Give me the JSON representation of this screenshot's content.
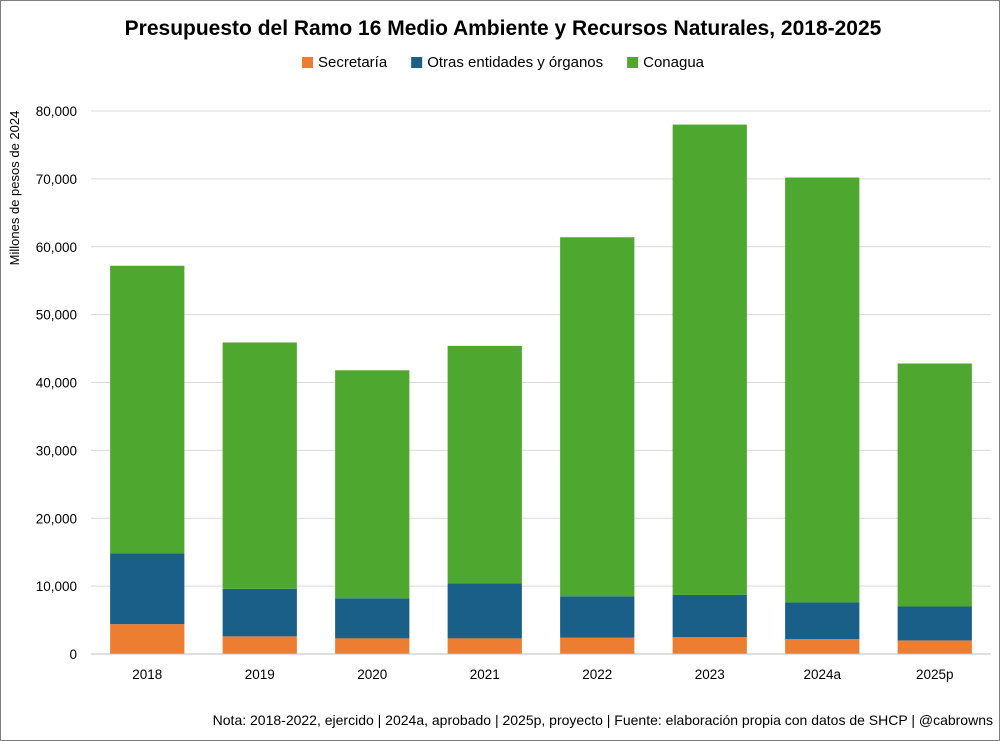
{
  "chart_data": {
    "type": "bar",
    "stacked": true,
    "title": "Presupuesto del Ramo 16 Medio Ambiente y Recursos Naturales, 2018-2025",
    "xlabel": "",
    "ylabel": "Millones de pesos de 2024",
    "categories": [
      "2018",
      "2019",
      "2020",
      "2021",
      "2022",
      "2023",
      "2024a",
      "2025p"
    ],
    "series": [
      {
        "name": "Secretaría",
        "color": "#ed7d31",
        "values": [
          4400,
          2600,
          2300,
          2300,
          2400,
          2500,
          2200,
          2000
        ]
      },
      {
        "name": "Otras entidades y órganos",
        "color": "#1a5f87",
        "values": [
          10400,
          7000,
          5900,
          8100,
          6100,
          6200,
          5400,
          5000
        ]
      },
      {
        "name": "Conagua",
        "color": "#4ea72e",
        "values": [
          42400,
          36300,
          33600,
          35000,
          52900,
          69300,
          62600,
          35800
        ]
      }
    ],
    "ylim": [
      0,
      80000
    ],
    "yticks": [
      0,
      10000,
      20000,
      30000,
      40000,
      50000,
      60000,
      70000,
      80000
    ],
    "ytick_labels": [
      "0",
      "10,000",
      "20,000",
      "30,000",
      "40,000",
      "50,000",
      "60,000",
      "70,000",
      "80,000"
    ],
    "grid": true,
    "legend_position": "top-center",
    "note": "Nota: 2018-2022, ejercido  |  2024a, aprobado  |  2025p, proyecto  |  Fuente: elaboración propia con datos de SHCP  |  @cabrowns"
  }
}
